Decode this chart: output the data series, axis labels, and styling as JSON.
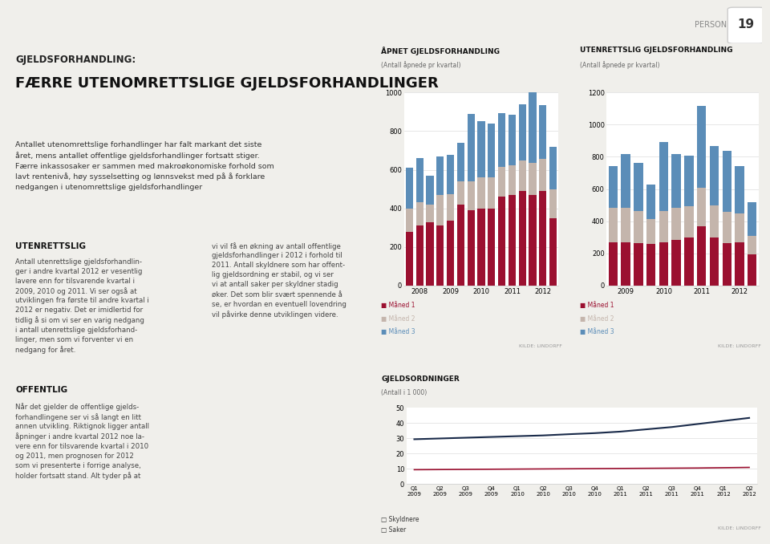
{
  "page_bg": "#F0EFEB",
  "box_bg": "#FFFFFF",
  "chart1_title": "ÅPNET GJELDSFORHANDLING",
  "chart1_subtitle": "(Antall åpnede pr kvartal)",
  "chart1_ylim": [
    0,
    1000
  ],
  "chart1_yticks": [
    0,
    200,
    400,
    600,
    800,
    1000
  ],
  "chart1_years": [
    "2008",
    "2009",
    "2010",
    "2011",
    "2012"
  ],
  "chart1_maaned1": [
    280,
    310,
    330,
    310,
    335,
    420,
    390,
    400,
    400,
    460,
    470,
    490,
    470,
    490,
    350
  ],
  "chart1_maaned2": [
    120,
    120,
    90,
    160,
    140,
    120,
    150,
    160,
    160,
    155,
    155,
    160,
    165,
    165,
    150
  ],
  "chart1_maaned3": [
    210,
    230,
    150,
    200,
    200,
    200,
    350,
    290,
    280,
    280,
    260,
    290,
    380,
    280,
    220
  ],
  "chart2_title": "UTENRETTSLIG GJELDSFORHANDLING",
  "chart2_subtitle": "(Antall åpnede pr kvartal)",
  "chart2_ylim": [
    0,
    1200
  ],
  "chart2_yticks": [
    0,
    200,
    400,
    600,
    800,
    1000,
    1200
  ],
  "chart2_years": [
    "2009",
    "2010",
    "2011",
    "2012"
  ],
  "chart2_maaned1": [
    270,
    270,
    265,
    260,
    270,
    285,
    300,
    370,
    300,
    265,
    270,
    195
  ],
  "chart2_maaned2": [
    215,
    215,
    200,
    155,
    195,
    200,
    195,
    240,
    200,
    195,
    180,
    115
  ],
  "chart2_maaned3": [
    260,
    330,
    300,
    215,
    425,
    330,
    310,
    505,
    365,
    375,
    295,
    210
  ],
  "chart3_title": "GJELDSORDNINGER",
  "chart3_subtitle": "(Antall i 1 000)",
  "chart3_ylim": [
    0,
    50
  ],
  "chart3_yticks": [
    0,
    10,
    20,
    30,
    40,
    50
  ],
  "chart3_labels": [
    "Q1\n2009",
    "Q2\n2009",
    "Q3\n2009",
    "Q4\n2009",
    "Q1\n2010",
    "Q2\n2010",
    "Q3\n2010",
    "Q4\n2010",
    "Q1\n2011",
    "Q2\n2011",
    "Q3\n2011",
    "Q4\n2011",
    "Q1\n2012",
    "Q2\n2012"
  ],
  "chart3_skyldnere": [
    29.5,
    30.0,
    30.5,
    31.0,
    31.5,
    32.0,
    32.8,
    33.5,
    34.5,
    36.0,
    37.5,
    39.5,
    41.5,
    43.5
  ],
  "chart3_saker": [
    9.5,
    9.6,
    9.7,
    9.8,
    9.9,
    10.0,
    10.1,
    10.2,
    10.3,
    10.4,
    10.5,
    10.6,
    10.8,
    11.0
  ],
  "color_m1": "#9B1030",
  "color_m2": "#C4B5AC",
  "color_m3": "#5B8DB8",
  "color_sky": "#1A2B4A",
  "color_sak": "#9B1030",
  "color_grid": "#DDDDDD",
  "color_spine": "#CCCCCC",
  "source": "KILDE: LINDORFF",
  "lbl_m1": "Måned 1",
  "lbl_m2": "Måned 2",
  "lbl_m3": "Måned 3",
  "lbl_sky": "Skyldnere",
  "lbl_sak": "Saker",
  "person_label": "PERSON",
  "person_num": "19",
  "text_title1": "GJELDSFORHANDLING:",
  "text_title2": "FÆRRE UTENOMRETTSLIGE GJELDSFORHANDLINGER",
  "text_body": "Antallet utenomrettslige forhandlinger har falt markant det siste\nåret, mens antallet offentlige gjeldsforhandlinger fortsatt stiger.\nFærre inkassosaker er sammen med makroøkonomiske forhold som\nlavt rentenivå, høy sysselsetting og lønnsvekst med på å forklare\nnedgangen i utenomrettslige gjeldsforhandlinger",
  "text_utenrettslig_head": "UTENRETTSLIG",
  "text_utenrettslig_body": "Antall utenrettslige gjeldsforhandlin-\nger i andre kvartal 2012 er vesentlig\nlavere enn for tilsvarende kvartal i\n2009, 2010 og 2011. Vi ser også at\nutviklingen fra første til andre kvartal i\n2012 er negativ. Det er imidlertid for\ntidlig å si om vi ser en varig nedgang\ni antall utenrettslige gjeldsforhand-\nlinger, men som vi forventer vi en\nnedgang for året.",
  "text_right_col": "vi vil få en økning av antall offentlige\ngjeldsforhandlinger i 2012 i forhold til\n2011. Antall skyldnere som har offent-\nlig gjeldsordning er stabil, og vi ser\nvi at antall saker per skyldner stadig\nøker. Det som blir svært spennende å\nse, er hvordan en eventuell lovendring\nvil påvirke denne utviklingen videre.",
  "text_offentlig_head": "OFFENTLIG",
  "text_offentlig_body": "Når det gjelder de offentlige gjelds-\nforhandlingene ser vi så langt en litt\nannen utvikling. Riktignok ligger antall\nåpninger i andre kvartal 2012 noe la-\nvere enn for tilsvarende kvartal i 2010\nog 2011, men prognosen for 2012\nsom vi presenterte i forrige analyse,\nholder fortsatt stand. Alt tyder på at"
}
